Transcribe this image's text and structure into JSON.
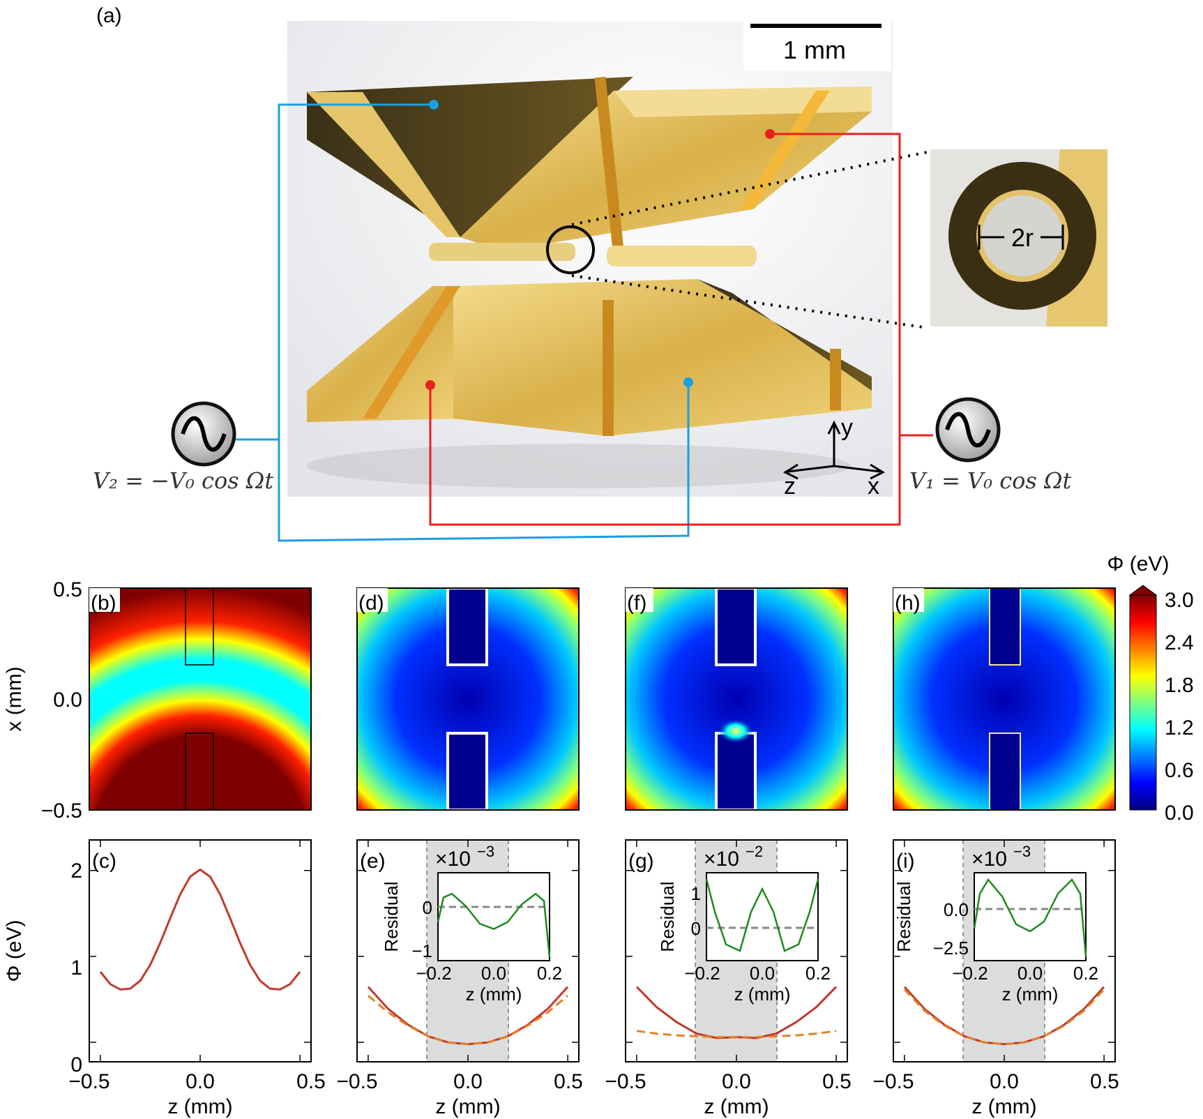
{
  "figure": {
    "panel_a": {
      "label": "(a)",
      "scale_bar": "1 mm",
      "inset_label": "2r",
      "v1_label": "V₁ = V₀ cos Ωt",
      "v2_label": "V₂ = −V₀ cos Ωt",
      "axes": {
        "y": "y",
        "z": "z",
        "x": "x"
      },
      "colors": {
        "v1_wire": "#e8201c",
        "v2_wire": "#1a9fe0",
        "electrode": "#d8b24a"
      }
    },
    "colorbar": {
      "label": "Φ (eV)",
      "ticks": [
        "3.0",
        "2.4",
        "1.8",
        "1.2",
        "0.6",
        "0.0"
      ],
      "range": [
        0,
        3.0
      ],
      "colormap": "jet"
    },
    "maps": {
      "b": "(b)",
      "d": "(d)",
      "f": "(f)",
      "h": "(h)",
      "ylabel": "x (mm)",
      "yticks": [
        "0.5",
        "0.0",
        "−0.5"
      ]
    },
    "lines": {
      "c": "(c)",
      "e": "(e)",
      "g": "(g)",
      "i": "(i)",
      "ylabel": "Φ (eV)",
      "yticks": [
        "2",
        "1",
        "0"
      ],
      "xlabel": "z (mm)",
      "xticks": [
        "−0.5",
        "0.0",
        "0.5"
      ]
    },
    "insets": {
      "e": {
        "multiplier": "×10",
        "exp": "−3",
        "yticks": [
          "0",
          "−1"
        ],
        "ylabel": "Residual",
        "xlabel": "z (mm)",
        "xticks": [
          "−0.2",
          "0.0",
          "0.2"
        ]
      },
      "g": {
        "multiplier": "×10",
        "exp": "−2",
        "yticks": [
          "1",
          "0"
        ],
        "ylabel": "Residual",
        "xlabel": "z (mm)",
        "xticks": [
          "−0.2",
          "0.0",
          "0.2"
        ]
      },
      "i": {
        "multiplier": "×10",
        "exp": "−3",
        "yticks": [
          "0.0",
          "−2.5"
        ],
        "ylabel": "Residual",
        "xlabel": "z (mm)",
        "xticks": [
          "−0.2",
          "0.0",
          "0.2"
        ]
      }
    }
  },
  "chart_data": [
    {
      "type": "line",
      "panel": "(c)",
      "xlabel": "z (mm)",
      "ylabel": "Φ (eV)",
      "xlim": [
        -0.5,
        0.5
      ],
      "ylim": [
        0,
        2.2
      ],
      "series": [
        {
          "x": [
            -0.5,
            -0.45,
            -0.4,
            -0.35,
            -0.3,
            -0.25,
            -0.2,
            -0.15,
            -0.1,
            -0.05,
            0.0,
            0.05,
            0.1,
            0.15,
            0.2,
            0.25,
            0.3,
            0.35,
            0.4,
            0.45,
            0.5
          ],
          "values": [
            1.02,
            0.88,
            0.82,
            0.83,
            0.92,
            1.1,
            1.35,
            1.63,
            1.9,
            2.1,
            2.18,
            2.1,
            1.9,
            1.63,
            1.35,
            1.1,
            0.92,
            0.83,
            0.82,
            0.88,
            1.02
          ]
        }
      ]
    },
    {
      "type": "line",
      "panel": "(e)",
      "xlabel": "z (mm)",
      "ylabel": "Φ (eV)",
      "xlim": [
        -0.5,
        0.5
      ],
      "ylim": [
        0,
        2.2
      ],
      "series": [
        {
          "x": [
            -0.5,
            -0.4,
            -0.3,
            -0.2,
            -0.1,
            0.0,
            0.1,
            0.2,
            0.3,
            0.4,
            0.5
          ],
          "values": [
            0.85,
            0.6,
            0.42,
            0.29,
            0.22,
            0.2,
            0.22,
            0.29,
            0.42,
            0.6,
            0.85
          ]
        },
        {
          "x": [
            -0.5,
            -0.4,
            -0.3,
            -0.2,
            -0.1,
            0.0,
            0.1,
            0.2,
            0.3,
            0.4,
            0.5
          ],
          "values": [
            0.75,
            0.56,
            0.41,
            0.29,
            0.22,
            0.2,
            0.22,
            0.29,
            0.41,
            0.56,
            0.75
          ]
        }
      ]
    },
    {
      "type": "line",
      "panel": "(g)",
      "xlabel": "z (mm)",
      "ylabel": "Φ (eV)",
      "xlim": [
        -0.5,
        0.5
      ],
      "ylim": [
        0,
        2.2
      ],
      "series": [
        {
          "x": [
            -0.5,
            -0.4,
            -0.3,
            -0.2,
            -0.1,
            0.0,
            0.1,
            0.2,
            0.3,
            0.4,
            0.5
          ],
          "values": [
            0.85,
            0.62,
            0.45,
            0.32,
            0.27,
            0.28,
            0.27,
            0.32,
            0.45,
            0.62,
            0.85
          ]
        },
        {
          "x": [
            -0.5,
            -0.4,
            -0.3,
            -0.2,
            -0.1,
            0.0,
            0.1,
            0.2,
            0.3,
            0.4,
            0.5
          ],
          "values": [
            0.35,
            0.32,
            0.3,
            0.29,
            0.28,
            0.28,
            0.28,
            0.29,
            0.3,
            0.32,
            0.35
          ]
        }
      ]
    },
    {
      "type": "line",
      "panel": "(i)",
      "xlabel": "z (mm)",
      "ylabel": "Φ (eV)",
      "xlim": [
        -0.5,
        0.5
      ],
      "ylim": [
        0,
        2.2
      ],
      "series": [
        {
          "x": [
            -0.5,
            -0.4,
            -0.3,
            -0.2,
            -0.1,
            0.0,
            0.1,
            0.2,
            0.3,
            0.4,
            0.5
          ],
          "values": [
            0.85,
            0.6,
            0.42,
            0.29,
            0.22,
            0.2,
            0.22,
            0.29,
            0.42,
            0.6,
            0.85
          ]
        },
        {
          "x": [
            -0.5,
            -0.4,
            -0.3,
            -0.2,
            -0.1,
            0.0,
            0.1,
            0.2,
            0.3,
            0.4,
            0.5
          ],
          "values": [
            0.82,
            0.58,
            0.41,
            0.29,
            0.22,
            0.2,
            0.22,
            0.29,
            0.41,
            0.58,
            0.82
          ]
        }
      ]
    },
    {
      "type": "line",
      "panel": "(e) inset",
      "ylabel": "Residual",
      "xlabel": "z (mm)",
      "xlim": [
        -0.2,
        0.2
      ],
      "series": [
        {
          "x": [
            -0.2,
            -0.18,
            -0.15,
            -0.1,
            -0.05,
            0.0,
            0.05,
            0.1,
            0.15,
            0.18,
            0.2
          ],
          "values": [
            -0.2,
            0.5,
            0.6,
            0.25,
            -0.25,
            -0.4,
            -0.2,
            0.3,
            0.6,
            0.4,
            -1.2
          ]
        }
      ]
    },
    {
      "type": "line",
      "panel": "(g) inset",
      "ylabel": "Residual",
      "xlabel": "z (mm)",
      "xlim": [
        -0.2,
        0.2
      ],
      "series": [
        {
          "x": [
            -0.2,
            -0.17,
            -0.13,
            -0.08,
            -0.04,
            0.0,
            0.04,
            0.08,
            0.13,
            0.17,
            0.2
          ],
          "values": [
            1.3,
            0.3,
            -0.7,
            -0.9,
            0.3,
            1.0,
            0.3,
            -0.9,
            -0.7,
            0.3,
            1.3
          ]
        }
      ]
    },
    {
      "type": "line",
      "panel": "(i) inset",
      "ylabel": "Residual",
      "xlabel": "z (mm)",
      "xlim": [
        -0.2,
        0.2
      ],
      "series": [
        {
          "x": [
            -0.2,
            -0.18,
            -0.15,
            -0.1,
            -0.05,
            0.0,
            0.05,
            0.1,
            0.15,
            0.18,
            0.2
          ],
          "values": [
            -1.5,
            1.0,
            2.0,
            0.8,
            -1.2,
            -1.7,
            -1.0,
            1.0,
            2.0,
            1.0,
            -3.5
          ]
        }
      ]
    }
  ]
}
